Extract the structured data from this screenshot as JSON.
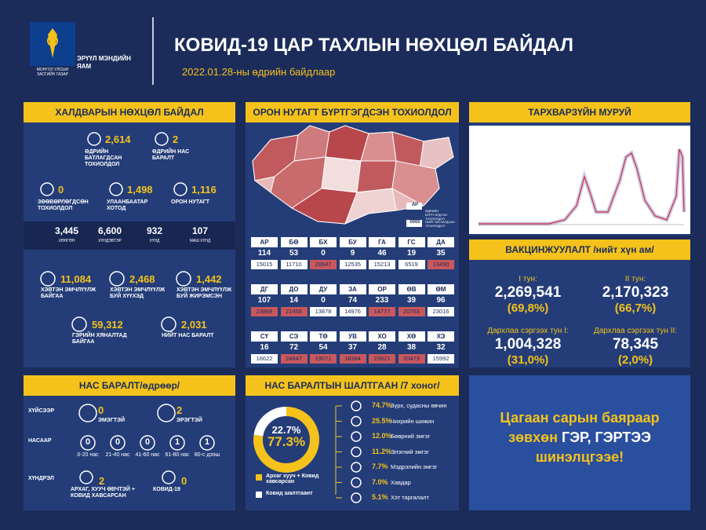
{
  "header": {
    "government": "МОНГОЛ УЛСЫН ЗАСГИЙН ГАЗАР",
    "ministry": "ЭРҮҮЛ МЭНДИЙН ЯАМ",
    "title": "КОВИД-19 ЦАР ТАХЛЫН НӨХЦӨЛ БАЙДАЛ",
    "date": "2022.01.28-ны өдрийн байдлаар"
  },
  "infection": {
    "title": "ХАЛДВАРЫН НӨХЦӨЛ БАЙДАЛ",
    "stats": [
      {
        "value": "2,614",
        "label": "ӨДРИЙН БАТЛАГДСАН ТОХИОЛДОЛ"
      },
      {
        "value": "2",
        "label": "ӨДРИЙН НАС БАРАЛТ"
      },
      {
        "value": "0",
        "label": "ЗӨӨВӨРЛӨГДСӨН ТОХИОЛДОЛ"
      },
      {
        "value": "1,498",
        "label": "УЛААНБААТАР ХОТОД"
      },
      {
        "value": "1,116",
        "label": "ОРОН НУТАГТ"
      }
    ],
    "severity": [
      {
        "value": "3,445",
        "label": "ХӨНГӨН"
      },
      {
        "value": "6,600",
        "label": "ХҮНДЭВТЭР"
      },
      {
        "value": "932",
        "label": "ХҮНД"
      },
      {
        "value": "107",
        "label": "МАШ ХҮНД"
      }
    ],
    "care": [
      {
        "value": "11,084",
        "label": "ХЭВТЭН ЭМЧЛҮҮЛЖ БАЙГАА"
      },
      {
        "value": "2,468",
        "label": "ХЭВТЭН ЭМЧЛҮҮЛЖ БУЙ ХҮҮХЭД"
      },
      {
        "value": "1,442",
        "label": "ХЭВТЭН ЭМЧЛҮҮЛЖ БУЙ ЖИРЭМСЭН"
      },
      {
        "value": "59,312",
        "label": "ГЭРИЙН ХЯНАЛТАД БАЙГАА"
      },
      {
        "value": "2,031",
        "label": "НИЙТ НАС БАРАЛТ"
      }
    ]
  },
  "regions": {
    "title": "ОРОН НУТАГТ БҮРТГЭГДСЭН ТОХИОЛДОЛ",
    "legend": {
      "code": "АР",
      "daily": "ӨДРИЙН БҮРТГЭГДСЭН ТОХИОЛДОЛ",
      "total_sample": "0000",
      "total": "НИЙТ БАТЛАГДСАН ТОХИОЛДОЛ"
    },
    "rows": [
      {
        "code": "АР",
        "daily": 114,
        "total": 15015,
        "high": false
      },
      {
        "code": "БӨ",
        "daily": 53,
        "total": 11710,
        "high": false
      },
      {
        "code": "БХ",
        "daily": 0,
        "total": 20647,
        "high": true
      },
      {
        "code": "БУ",
        "daily": 9,
        "total": 12535,
        "high": false
      },
      {
        "code": "ГА",
        "daily": 46,
        "total": 15213,
        "high": false
      },
      {
        "code": "ГС",
        "daily": 19,
        "total": 6519,
        "high": false
      },
      {
        "code": "ДА",
        "daily": 35,
        "total": 13490,
        "high": true
      },
      {
        "code": "ДГ",
        "daily": 107,
        "total": 23869,
        "high": true
      },
      {
        "code": "ДО",
        "daily": 14,
        "total": 21456,
        "high": true
      },
      {
        "code": "ДУ",
        "daily": 0,
        "total": 13878,
        "high": false
      },
      {
        "code": "ЗА",
        "daily": 74,
        "total": 14976,
        "high": false
      },
      {
        "code": "ОР",
        "daily": 233,
        "total": 14777,
        "high": true
      },
      {
        "code": "ӨВ",
        "daily": 39,
        "total": 20763,
        "high": true
      },
      {
        "code": "ӨМ",
        "daily": 96,
        "total": 23016,
        "high": false
      },
      {
        "code": "СҮ",
        "daily": 16,
        "total": 16622,
        "high": false
      },
      {
        "code": "СЭ",
        "daily": 72,
        "total": 24847,
        "high": true
      },
      {
        "code": "ТӨ",
        "daily": 54,
        "total": 19071,
        "high": true
      },
      {
        "code": "УВ",
        "daily": 37,
        "total": 18384,
        "high": true
      },
      {
        "code": "ХО",
        "daily": 28,
        "total": 23921,
        "high": true
      },
      {
        "code": "ХӨ",
        "daily": 38,
        "total": 20473,
        "high": true
      },
      {
        "code": "ХЭ",
        "daily": 32,
        "total": 15992,
        "high": false
      }
    ]
  },
  "epi_curve": {
    "title": "ТАРХВАРЗҮЙН МУРУЙ"
  },
  "vaccination": {
    "title": "ВАКЦИНЖУУЛАЛТ /нийт хүн ам/",
    "doses": [
      {
        "label": "I тун:",
        "value": "2,269,541",
        "percent": "(69,8%)"
      },
      {
        "label": "II тун:",
        "value": "2,170,323",
        "percent": "(66,7%)"
      },
      {
        "label": "Дархлаа сэргээх тун I:",
        "value": "1,004,328",
        "percent": "(31,0%)"
      },
      {
        "label": "Дархлаа сэргээх тун II:",
        "value": "78,345",
        "percent": "(2,0%)"
      }
    ]
  },
  "deaths": {
    "title": "НАС БАРАЛТ/өдрөөр/",
    "by_sex": {
      "label": "ХҮЙСЭЭР",
      "items": [
        {
          "value": "0",
          "label": "ЭМЭГТЭЙ"
        },
        {
          "value": "2",
          "label": "ЭРЭГТЭЙ"
        }
      ]
    },
    "by_age": {
      "label": "НАСААР",
      "items": [
        {
          "value": "0",
          "label": "0-20 нас"
        },
        {
          "value": "0",
          "label": "21-40 нас"
        },
        {
          "value": "0",
          "label": "41-60 нас"
        },
        {
          "value": "1",
          "label": "61-80 нас"
        },
        {
          "value": "1",
          "label": "80-с дээш"
        }
      ]
    },
    "by_complication": {
      "label": "ХҮНДРЭЛ",
      "items": [
        {
          "value": "2",
          "label": "АРХАГ, ХУУЧ ӨВЧТЭЙ + КОВИД ХАВСАРСАН"
        },
        {
          "value": "0",
          "label": "КОВИД-19"
        }
      ]
    }
  },
  "causes": {
    "title": "НАС БАРАЛТЫН ШАЛТГААН /7 хоног/",
    "chart": {
      "type": "donut",
      "values": [
        77.3,
        22.7
      ],
      "value_labels": [
        "77.3%",
        "22.7%"
      ],
      "names": [
        "Архаг хууч + Ковид хавсарсан",
        "Ковид шалтгаант"
      ],
      "colors": [
        "#f4c21b",
        "#ffffff"
      ]
    },
    "list": [
      {
        "percent": "74.7%",
        "label": "Зүрх, судасны өвчин"
      },
      {
        "percent": "25.5%",
        "label": "Чихрийн шижин"
      },
      {
        "percent": "12.0%",
        "label": "Бөөрний эмгэг"
      },
      {
        "percent": "11.2%",
        "label": "Элэгний эмгэг"
      },
      {
        "percent": "7.7%",
        "label": "Мэдрэлийн эмгэг"
      },
      {
        "percent": "7.0%",
        "label": "Хавдар"
      },
      {
        "percent": "5.1%",
        "label": "Хэт таргалалт"
      }
    ]
  },
  "message": {
    "line1": "Цагаан сарын баяраар",
    "line2_highlight": "зөвхөн",
    "line2": "ГЭР, ГЭРТЭЭ",
    "line3": "шинэлцгээе!"
  }
}
